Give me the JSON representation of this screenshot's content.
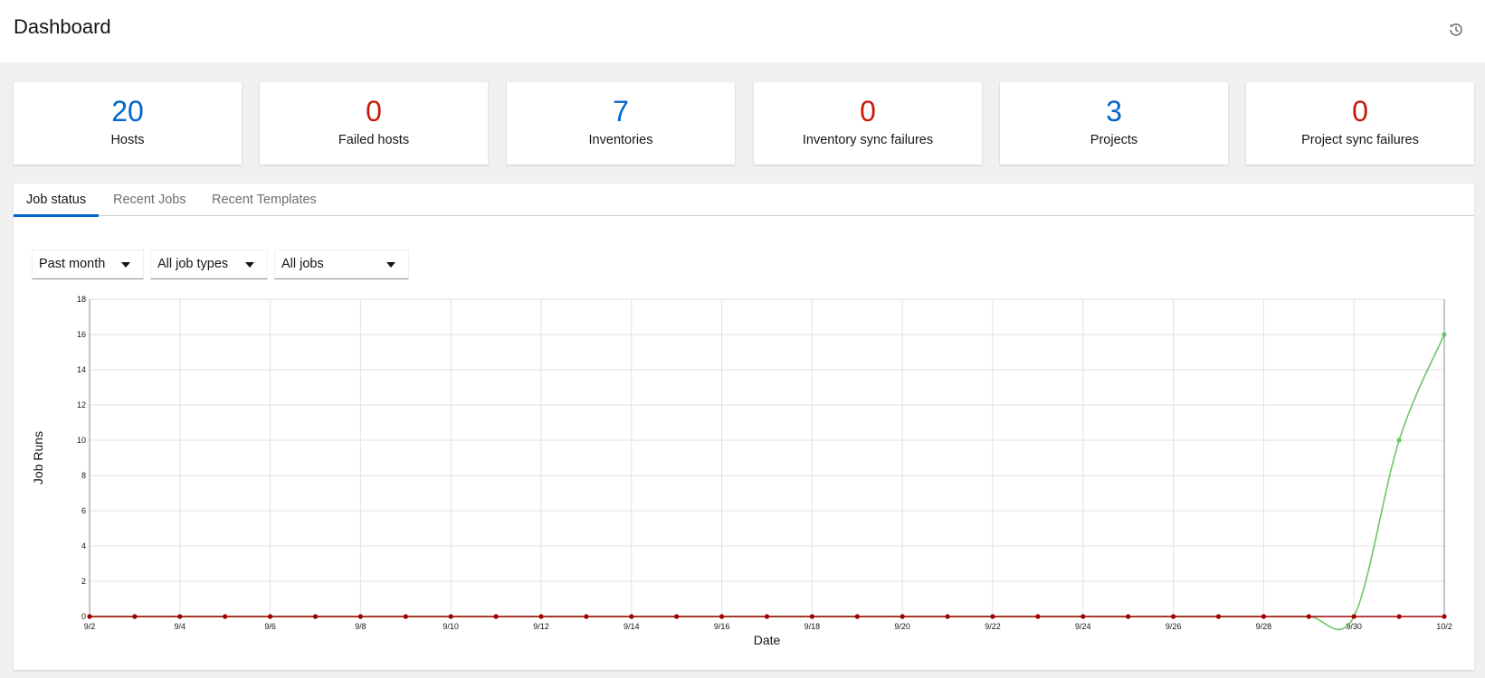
{
  "header": {
    "title": "Dashboard",
    "history_icon": "history-icon"
  },
  "cards": [
    {
      "count": "20",
      "label": "Hosts",
      "color": "blue"
    },
    {
      "count": "0",
      "label": "Failed hosts",
      "color": "red"
    },
    {
      "count": "7",
      "label": "Inventories",
      "color": "blue"
    },
    {
      "count": "0",
      "label": "Inventory sync failures",
      "color": "red"
    },
    {
      "count": "3",
      "label": "Projects",
      "color": "blue"
    },
    {
      "count": "0",
      "label": "Project sync failures",
      "color": "red"
    }
  ],
  "tabs": [
    {
      "label": "Job status",
      "active": true
    },
    {
      "label": "Recent Jobs",
      "active": false
    },
    {
      "label": "Recent Templates",
      "active": false
    }
  ],
  "filters": {
    "period": "Past month",
    "job_type": "All job types",
    "status": "All jobs"
  },
  "colors": {
    "blue": "#0066cc",
    "red": "#c9190b",
    "successful": "#6ec664",
    "failed": "#a30000"
  },
  "chart_data": {
    "type": "line",
    "xlabel": "Date",
    "ylabel": "Job Runs",
    "ylim": [
      0,
      18
    ],
    "yticks": [
      0,
      2,
      4,
      6,
      8,
      10,
      12,
      14,
      16,
      18
    ],
    "x": [
      "9/2",
      "9/3",
      "9/4",
      "9/5",
      "9/6",
      "9/7",
      "9/8",
      "9/9",
      "9/10",
      "9/11",
      "9/12",
      "9/13",
      "9/14",
      "9/15",
      "9/16",
      "9/17",
      "9/18",
      "9/19",
      "9/20",
      "9/21",
      "9/22",
      "9/23",
      "9/24",
      "9/25",
      "9/26",
      "9/27",
      "9/28",
      "9/29",
      "9/30",
      "10/1",
      "10/2"
    ],
    "xtick_labels": [
      "9/2",
      "9/4",
      "9/6",
      "9/8",
      "9/10",
      "9/12",
      "9/14",
      "9/16",
      "9/18",
      "9/20",
      "9/22",
      "9/24",
      "9/26",
      "9/28",
      "9/30",
      "10/2"
    ],
    "grid": true,
    "series": [
      {
        "color": "#6ec664",
        "values": [
          0,
          0,
          0,
          0,
          0,
          0,
          0,
          0,
          0,
          0,
          0,
          0,
          0,
          0,
          0,
          0,
          0,
          0,
          0,
          0,
          0,
          0,
          0,
          0,
          0,
          0,
          0,
          0,
          0,
          10,
          16
        ]
      },
      {
        "color": "#a30000",
        "values": [
          0,
          0,
          0,
          0,
          0,
          0,
          0,
          0,
          0,
          0,
          0,
          0,
          0,
          0,
          0,
          0,
          0,
          0,
          0,
          0,
          0,
          0,
          0,
          0,
          0,
          0,
          0,
          0,
          0,
          0,
          0
        ]
      }
    ]
  }
}
